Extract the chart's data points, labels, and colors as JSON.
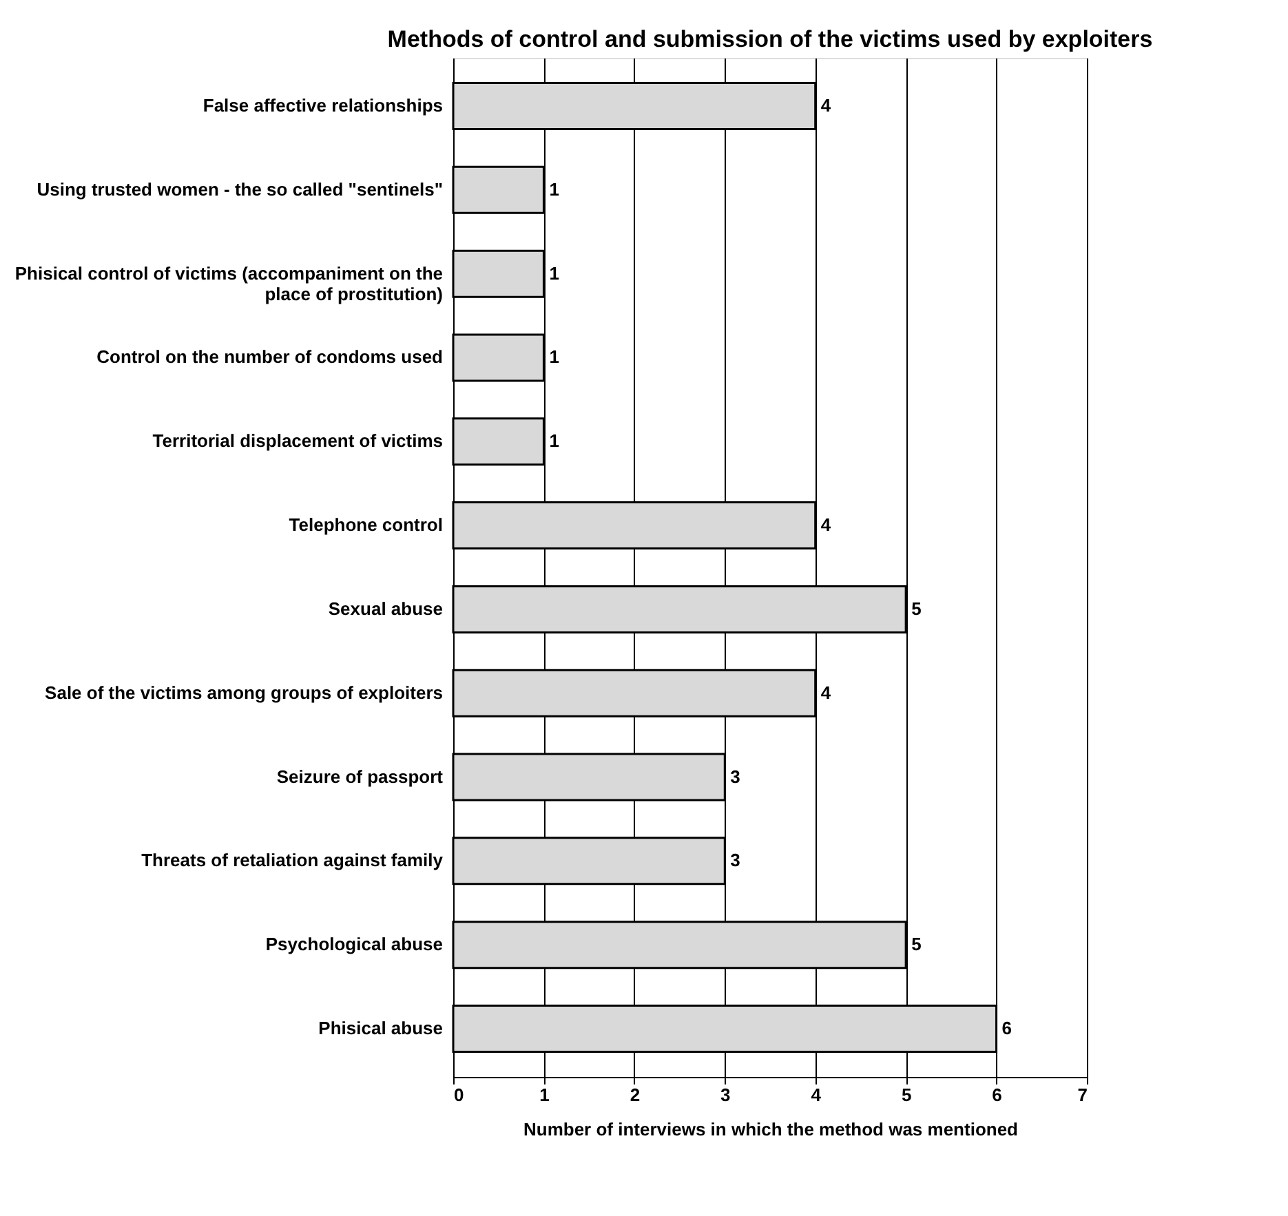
{
  "chart_data": {
    "type": "bar",
    "orientation": "horizontal",
    "title": "Methods of control and submission of the victims used by exploiters",
    "xlabel": "Number of interviews in which the method was mentioned",
    "categories": [
      "False affective relationships",
      "Using trusted women - the so called \"sentinels\"",
      "Phisical control of victims (accompaniment on the place of prostitution)",
      "Control on the number of condoms used",
      "Territorial displacement of victims",
      "Telephone control",
      "Sexual abuse",
      "Sale of the victims among groups of exploiters",
      "Seizure of passport",
      "Threats of retaliation against family",
      "Psychological abuse",
      "Phisical abuse"
    ],
    "values": [
      4,
      1,
      1,
      1,
      1,
      4,
      5,
      4,
      3,
      3,
      5,
      6
    ],
    "color": "#d9d9d9",
    "xlim": [
      0,
      7
    ],
    "xticks": [
      0,
      1,
      2,
      3,
      4,
      5,
      6,
      7
    ],
    "grid": "x",
    "data_labels": true
  }
}
